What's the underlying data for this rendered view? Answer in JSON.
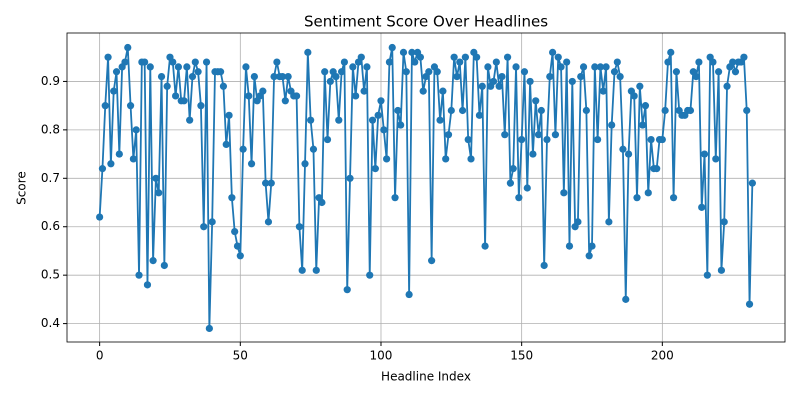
{
  "chart_data": {
    "type": "line",
    "title": "Sentiment Score Over Headlines",
    "x_label": "Headline Index",
    "y_label": "Score",
    "x": [
      0,
      1,
      2,
      3,
      4,
      5,
      6,
      7,
      8,
      9,
      10,
      11,
      12,
      13,
      14,
      15,
      16,
      17,
      18,
      19,
      20,
      21,
      22,
      23,
      24,
      25,
      26,
      27,
      28,
      29,
      30,
      31,
      32,
      33,
      34,
      35,
      36,
      37,
      38,
      39,
      40,
      41,
      42,
      43,
      44,
      45,
      46,
      47,
      48,
      49,
      50,
      51,
      52,
      53,
      54,
      55,
      56,
      57,
      58,
      59,
      60,
      61,
      62,
      63,
      64,
      65,
      66,
      67,
      68,
      69,
      70,
      71,
      72,
      73,
      74,
      75,
      76,
      77,
      78,
      79,
      80,
      81,
      82,
      83,
      84,
      85,
      86,
      87,
      88,
      89,
      90,
      91,
      92,
      93,
      94,
      95,
      96,
      97,
      98,
      99,
      100,
      101,
      102,
      103,
      104,
      105,
      106,
      107,
      108,
      109,
      110,
      111,
      112,
      113,
      114,
      115,
      116,
      117,
      118,
      119,
      120,
      121,
      122,
      123,
      124,
      125,
      126,
      127,
      128,
      129,
      130,
      131,
      132,
      133,
      134,
      135,
      136,
      137,
      138,
      139,
      140,
      141,
      142,
      143,
      144,
      145,
      146,
      147,
      148,
      149,
      150,
      151,
      152,
      153,
      154,
      155,
      156,
      157,
      158,
      159,
      160,
      161,
      162,
      163,
      164,
      165,
      166,
      167,
      168,
      169,
      170,
      171,
      172,
      173,
      174,
      175,
      176,
      177,
      178,
      179,
      180,
      181,
      182,
      183,
      184,
      185,
      186,
      187,
      188,
      189,
      190,
      191,
      192,
      193,
      194,
      195,
      196,
      197,
      198,
      199,
      200,
      201,
      202,
      203,
      204,
      205,
      206,
      207,
      208,
      209,
      210,
      211,
      212,
      213,
      214,
      215,
      216,
      217,
      218,
      219,
      220,
      221,
      222,
      223,
      224,
      225,
      226,
      227,
      228,
      229,
      230,
      231,
      232
    ],
    "series": [
      {
        "color": "#1f77b4",
        "values": [
          0.62,
          0.72,
          0.85,
          0.95,
          0.73,
          0.88,
          0.92,
          0.75,
          0.93,
          0.94,
          0.97,
          0.85,
          0.74,
          0.8,
          0.5,
          0.94,
          0.94,
          0.48,
          0.93,
          0.53,
          0.7,
          0.67,
          0.91,
          0.52,
          0.89,
          0.95,
          0.94,
          0.87,
          0.93,
          0.86,
          0.86,
          0.93,
          0.82,
          0.91,
          0.94,
          0.92,
          0.85,
          0.6,
          0.94,
          0.39,
          0.61,
          0.92,
          0.92,
          0.92,
          0.89,
          0.77,
          0.83,
          0.66,
          0.59,
          0.56,
          0.54,
          0.76,
          0.93,
          0.87,
          0.73,
          0.91,
          0.86,
          0.87,
          0.88,
          0.69,
          0.61,
          0.69,
          0.91,
          0.94,
          0.91,
          0.91,
          0.86,
          0.91,
          0.88,
          0.87,
          0.87,
          0.6,
          0.51,
          0.73,
          0.96,
          0.82,
          0.76,
          0.51,
          0.66,
          0.65,
          0.92,
          0.78,
          0.9,
          0.92,
          0.91,
          0.82,
          0.92,
          0.94,
          0.47,
          0.7,
          0.93,
          0.87,
          0.94,
          0.95,
          0.88,
          0.93,
          0.5,
          0.82,
          0.72,
          0.83,
          0.86,
          0.8,
          0.74,
          0.94,
          0.97,
          0.66,
          0.84,
          0.81,
          0.96,
          0.92,
          0.46,
          0.96,
          0.94,
          0.96,
          0.95,
          0.88,
          0.91,
          0.92,
          0.53,
          0.93,
          0.92,
          0.82,
          0.88,
          0.74,
          0.79,
          0.84,
          0.95,
          0.91,
          0.94,
          0.84,
          0.95,
          0.78,
          0.74,
          0.96,
          0.95,
          0.83,
          0.89,
          0.56,
          0.93,
          0.89,
          0.9,
          0.94,
          0.89,
          0.91,
          0.79,
          0.95,
          0.69,
          0.72,
          0.93,
          0.66,
          0.78,
          0.92,
          0.68,
          0.9,
          0.75,
          0.86,
          0.79,
          0.84,
          0.52,
          0.78,
          0.91,
          0.96,
          0.79,
          0.95,
          0.93,
          0.67,
          0.94,
          0.56,
          0.9,
          0.6,
          0.61,
          0.91,
          0.93,
          0.84,
          0.54,
          0.56,
          0.93,
          0.78,
          0.93,
          0.88,
          0.93,
          0.61,
          0.81,
          0.92,
          0.94,
          0.91,
          0.76,
          0.45,
          0.75,
          0.88,
          0.87,
          0.66,
          0.89,
          0.81,
          0.85,
          0.67,
          0.78,
          0.72,
          0.72,
          0.78,
          0.78,
          0.84,
          0.94,
          0.96,
          0.66,
          0.92,
          0.84,
          0.83,
          0.83,
          0.84,
          0.84,
          0.92,
          0.91,
          0.94,
          0.64,
          0.75,
          0.5,
          0.95,
          0.94,
          0.74,
          0.92,
          0.51,
          0.61,
          0.89,
          0.93,
          0.94,
          0.92,
          0.94,
          0.94,
          0.95,
          0.84,
          0.44,
          0.69
        ]
      }
    ],
    "xlim": [
      -11.6,
      243.6
    ],
    "ylim": [
      0.362,
      1.0
    ],
    "xticks": [
      0,
      50,
      100,
      150,
      200
    ],
    "yticks": [
      {
        "value": 0.4,
        "label": "0.4"
      },
      {
        "value": 0.5,
        "label": "0.5"
      },
      {
        "value": 0.6,
        "label": "0.6"
      },
      {
        "value": 0.7,
        "label": "0.7"
      },
      {
        "value": 0.8,
        "label": "0.8"
      },
      {
        "value": 0.9,
        "label": "0.9"
      }
    ],
    "grid": true,
    "marker": "o"
  }
}
